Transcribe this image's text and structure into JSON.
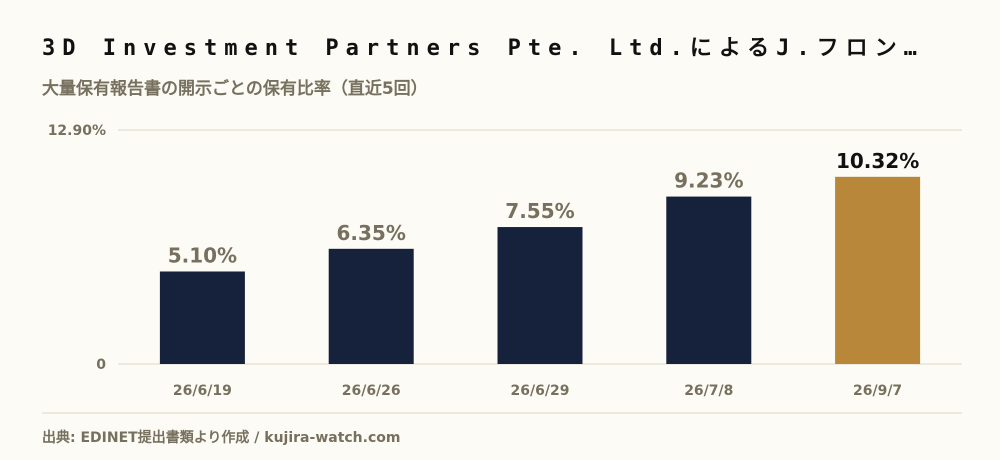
{
  "header": {
    "title": "3D Investment Partners Pte. Ltd.によるJ.フロン…",
    "subtitle": "大量保有報告書の開示ごとの保有比率（直近5回）"
  },
  "footer": {
    "source": "出典: EDINET提出書類より作成 / kujira-watch.com"
  },
  "chart_data": {
    "type": "bar",
    "categories": [
      "26/6/19",
      "26/6/26",
      "26/6/29",
      "26/7/8",
      "26/9/7"
    ],
    "values": [
      5.1,
      6.35,
      7.55,
      9.23,
      10.32
    ],
    "value_labels": [
      "5.10%",
      "6.35%",
      "7.55%",
      "9.23%",
      "10.32%"
    ],
    "ylim": [
      0,
      12.9
    ],
    "yticks": [
      {
        "value": 0,
        "label": "0"
      },
      {
        "value": 12.9,
        "label": "12.90%"
      }
    ],
    "grid": true,
    "colors": {
      "bar": "#16223b",
      "highlight": "#b8873a",
      "label": "#77705f",
      "highlight_label": "#111111",
      "grid": "#ddd9c8"
    },
    "highlight_index": 4
  }
}
